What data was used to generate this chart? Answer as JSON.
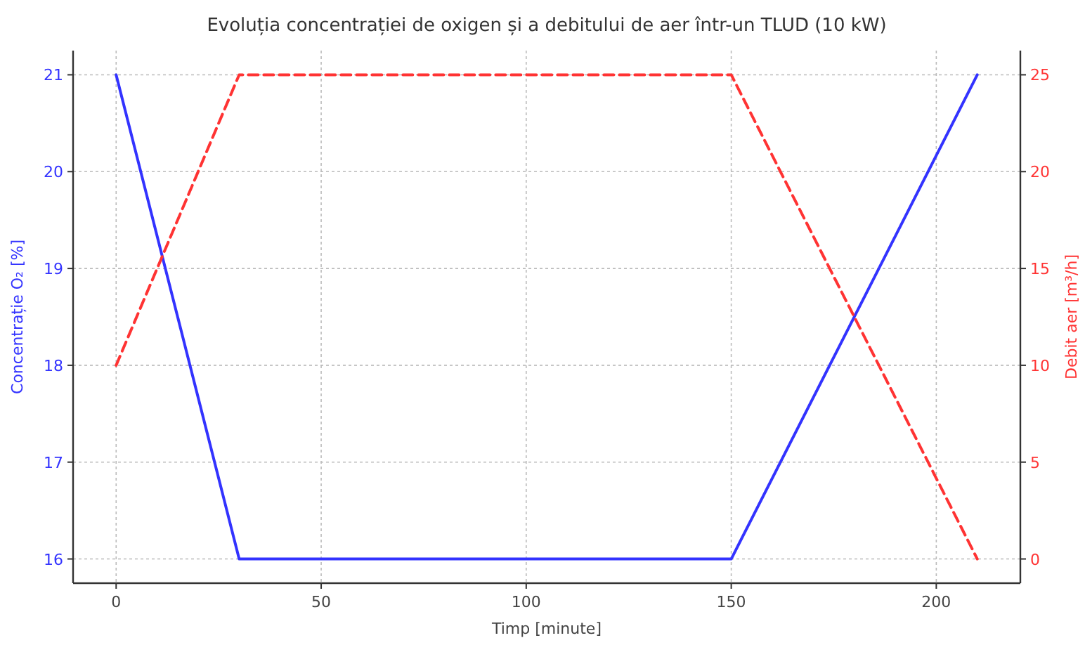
{
  "chart_data": {
    "type": "line",
    "title": "Evoluția concentrației de oxigen și a debitului de aer într-un TLUD (10 kW)",
    "xlabel": "Timp [minute]",
    "ylabel": "Concentrație O₂ [%]",
    "y2label": "Debit aer [m³/h]",
    "x": [
      0,
      30,
      150,
      210
    ],
    "series": [
      {
        "color": "#3333ff",
        "values": [
          21,
          16,
          16,
          21
        ],
        "line_style": "solid"
      },
      {
        "color": "#ff3333",
        "values": [
          10,
          25,
          25,
          0
        ],
        "line_style": "dashed",
        "axis": "y2"
      }
    ],
    "xlim": [
      -10.5,
      220.5
    ],
    "xticks": [
      0,
      50,
      100,
      150,
      200
    ],
    "ylim": [
      15.75,
      21.25
    ],
    "yticks": [
      16,
      17,
      18,
      19,
      20,
      21
    ],
    "y2lim": [
      -1.25,
      26.25
    ],
    "y2ticks": [
      0,
      5,
      10,
      15,
      20,
      25
    ],
    "grid": true,
    "marker": "none"
  }
}
